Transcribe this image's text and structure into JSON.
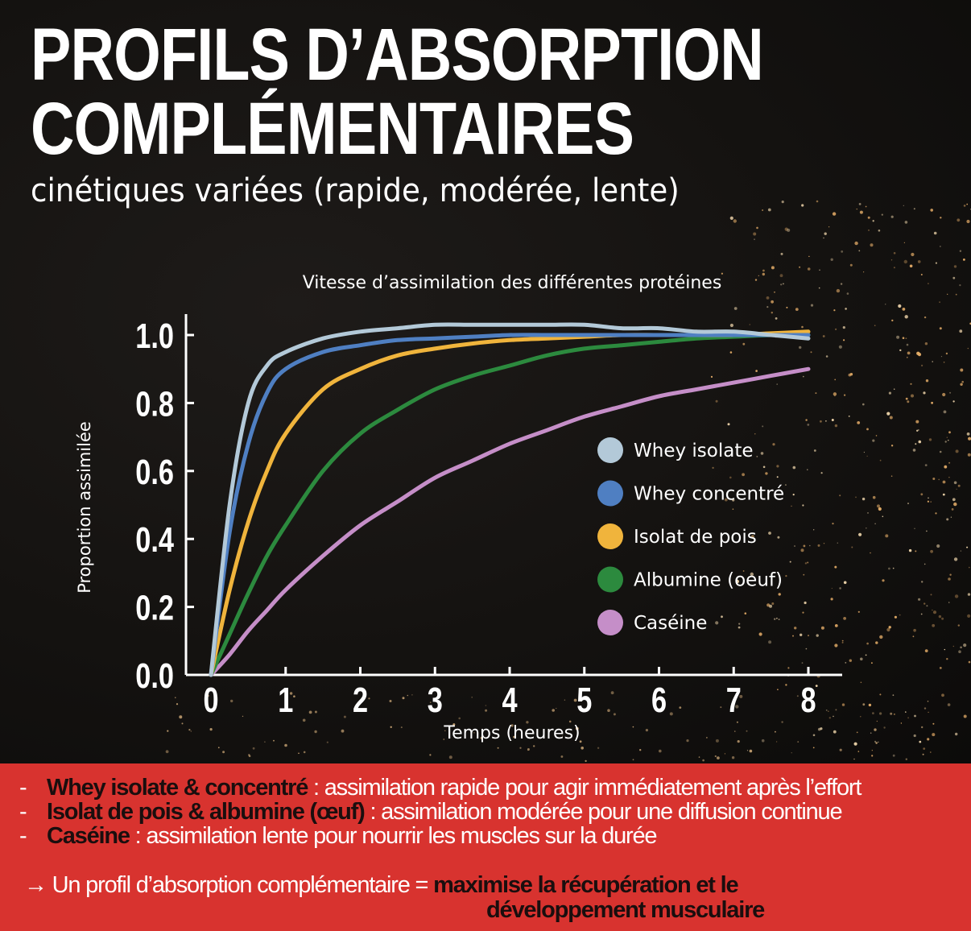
{
  "header": {
    "title_line1": "PROFILS D’ABSORPTION",
    "title_line2": "COMPLÉMENTAIRES",
    "subtitle": "cinétiques variées (rapide, modérée, lente)"
  },
  "chart_data": {
    "type": "line",
    "title": "Vitesse d’assimilation des différentes protéines",
    "xlabel": "Temps (heures)",
    "ylabel": "Proportion assimilée",
    "xlim": [
      0,
      8
    ],
    "ylim": [
      0,
      1.0
    ],
    "x_ticks": [
      "0",
      "1",
      "2",
      "3",
      "4",
      "5",
      "6",
      "7",
      "8"
    ],
    "y_ticks": [
      "0.0",
      "0.2",
      "0.4",
      "0.6",
      "0.8",
      "1.0"
    ],
    "x": [
      0,
      0.25,
      0.5,
      0.75,
      1,
      1.5,
      2,
      2.5,
      3,
      3.5,
      4,
      4.5,
      5,
      5.5,
      6,
      6.5,
      7,
      7.5,
      8
    ],
    "series": [
      {
        "name": "Whey isolate",
        "color": "#b3c9d8",
        "values": [
          0,
          0.5,
          0.8,
          0.91,
          0.95,
          0.99,
          1.01,
          1.02,
          1.03,
          1.03,
          1.03,
          1.03,
          1.03,
          1.02,
          1.02,
          1.01,
          1.01,
          1.0,
          0.99
        ]
      },
      {
        "name": "Whey concentré",
        "color": "#4f7fc2",
        "values": [
          0,
          0.42,
          0.68,
          0.83,
          0.9,
          0.95,
          0.97,
          0.985,
          0.99,
          0.995,
          1.0,
          1.0,
          1.0,
          1.0,
          1.0,
          1.0,
          1.0,
          1.0,
          1.0
        ]
      },
      {
        "name": "Isolat de pois",
        "color": "#f0b43c",
        "values": [
          0,
          0.25,
          0.45,
          0.6,
          0.71,
          0.84,
          0.9,
          0.94,
          0.96,
          0.975,
          0.985,
          0.99,
          0.995,
          1.0,
          1.0,
          1.0,
          1.0,
          1.005,
          1.01
        ]
      },
      {
        "name": "Albumine (oeuf)",
        "color": "#2c8a3e",
        "values": [
          0,
          0.12,
          0.24,
          0.35,
          0.44,
          0.6,
          0.71,
          0.78,
          0.84,
          0.88,
          0.91,
          0.94,
          0.96,
          0.97,
          0.98,
          0.99,
          0.995,
          1.0,
          1.0
        ]
      },
      {
        "name": "Caséine",
        "color": "#c58ec8",
        "values": [
          0,
          0.06,
          0.13,
          0.19,
          0.25,
          0.35,
          0.44,
          0.51,
          0.58,
          0.63,
          0.68,
          0.72,
          0.76,
          0.79,
          0.82,
          0.84,
          0.86,
          0.88,
          0.9
        ]
      }
    ],
    "legend_position": "center-right"
  },
  "bottom": {
    "dash": "-",
    "line1_bold": "Whey isolate & concentré",
    "line1_text": " : assimilation rapide pour agir immédiatement après l’effort",
    "line2_bold": "Isolat de pois & albumine (œuf)",
    "line2_text": " : assimilation modérée pour une diffusion continue",
    "line3_bold": "Caséine",
    "line3_text": " : assimilation lente pour nourrir les muscles sur la durée",
    "conclusion_text": "→ Un profil d’absorption complémentaire = ",
    "conclusion_bold1": "maximise la récupération et le",
    "conclusion_bold2": "développement musculaire"
  },
  "colors": {
    "banner_red": "#d8332f",
    "background": "#121110"
  }
}
